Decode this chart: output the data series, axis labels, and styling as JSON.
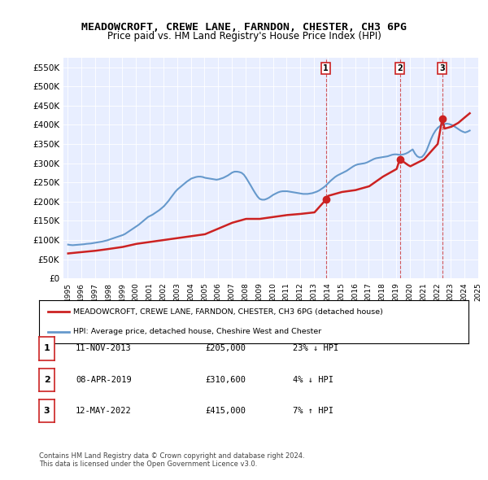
{
  "title": "MEADOWCROFT, CREWE LANE, FARNDON, CHESTER, CH3 6PG",
  "subtitle": "Price paid vs. HM Land Registry's House Price Index (HPI)",
  "background_color": "#f0f4ff",
  "plot_bg_color": "#e8eeff",
  "ylim": [
    0,
    575000
  ],
  "yticks": [
    0,
    50000,
    100000,
    150000,
    200000,
    250000,
    300000,
    350000,
    400000,
    450000,
    500000,
    550000
  ],
  "ytick_labels": [
    "£0",
    "£50K",
    "£100K",
    "£150K",
    "£200K",
    "£250K",
    "£300K",
    "£350K",
    "£400K",
    "£450K",
    "£500K",
    "£550K"
  ],
  "hpi_color": "#6699cc",
  "sale_color": "#cc2222",
  "vline_color": "#cc3333",
  "sales": [
    {
      "date": 2013.87,
      "price": 205000,
      "label": "1"
    },
    {
      "date": 2019.27,
      "price": 310600,
      "label": "2"
    },
    {
      "date": 2022.37,
      "price": 415000,
      "label": "3"
    }
  ],
  "legend_sale_label": "MEADOWCROFT, CREWE LANE, FARNDON, CHESTER, CH3 6PG (detached house)",
  "legend_hpi_label": "HPI: Average price, detached house, Cheshire West and Chester",
  "table_rows": [
    {
      "num": "1",
      "date": "11-NOV-2013",
      "price": "£205,000",
      "change": "23% ↓ HPI"
    },
    {
      "num": "2",
      "date": "08-APR-2019",
      "price": "£310,600",
      "change": "4% ↓ HPI"
    },
    {
      "num": "3",
      "date": "12-MAY-2022",
      "price": "£415,000",
      "change": "7% ↑ HPI"
    }
  ],
  "footnote": "Contains HM Land Registry data © Crown copyright and database right 2024.\nThis data is licensed under the Open Government Licence v3.0.",
  "hpi_data_x": [
    1995.04,
    1995.21,
    1995.38,
    1995.54,
    1995.71,
    1995.88,
    1996.04,
    1996.21,
    1996.38,
    1996.54,
    1996.71,
    1996.88,
    1997.04,
    1997.21,
    1997.38,
    1997.54,
    1997.71,
    1997.88,
    1998.04,
    1998.21,
    1998.38,
    1998.54,
    1998.71,
    1998.88,
    1999.04,
    1999.21,
    1999.38,
    1999.54,
    1999.71,
    1999.88,
    2000.04,
    2000.21,
    2000.38,
    2000.54,
    2000.71,
    2000.88,
    2001.04,
    2001.21,
    2001.38,
    2001.54,
    2001.71,
    2001.88,
    2002.04,
    2002.21,
    2002.38,
    2002.54,
    2002.71,
    2002.88,
    2003.04,
    2003.21,
    2003.38,
    2003.54,
    2003.71,
    2003.88,
    2004.04,
    2004.21,
    2004.38,
    2004.54,
    2004.71,
    2004.88,
    2005.04,
    2005.21,
    2005.38,
    2005.54,
    2005.71,
    2005.88,
    2006.04,
    2006.21,
    2006.38,
    2006.54,
    2006.71,
    2006.88,
    2007.04,
    2007.21,
    2007.38,
    2007.54,
    2007.71,
    2007.88,
    2008.04,
    2008.21,
    2008.38,
    2008.54,
    2008.71,
    2008.88,
    2009.04,
    2009.21,
    2009.38,
    2009.54,
    2009.71,
    2009.88,
    2010.04,
    2010.21,
    2010.38,
    2010.54,
    2010.71,
    2010.88,
    2011.04,
    2011.21,
    2011.38,
    2011.54,
    2011.71,
    2011.88,
    2012.04,
    2012.21,
    2012.38,
    2012.54,
    2012.71,
    2012.88,
    2013.04,
    2013.21,
    2013.38,
    2013.54,
    2013.71,
    2013.88,
    2014.04,
    2014.21,
    2014.38,
    2014.54,
    2014.71,
    2014.88,
    2015.04,
    2015.21,
    2015.38,
    2015.54,
    2015.71,
    2015.88,
    2016.04,
    2016.21,
    2016.38,
    2016.54,
    2016.71,
    2016.88,
    2017.04,
    2017.21,
    2017.38,
    2017.54,
    2017.71,
    2017.88,
    2018.04,
    2018.21,
    2018.38,
    2018.54,
    2018.71,
    2018.88,
    2019.04,
    2019.21,
    2019.38,
    2019.54,
    2019.71,
    2019.88,
    2020.04,
    2020.21,
    2020.38,
    2020.54,
    2020.71,
    2020.88,
    2021.04,
    2021.21,
    2021.38,
    2021.54,
    2021.71,
    2021.88,
    2022.04,
    2022.21,
    2022.38,
    2022.54,
    2022.71,
    2022.88,
    2023.04,
    2023.21,
    2023.38,
    2023.54,
    2023.71,
    2023.88,
    2024.04,
    2024.21,
    2024.38
  ],
  "hpi_data_y": [
    88000,
    87000,
    86500,
    87000,
    87500,
    88000,
    88500,
    89000,
    90000,
    90500,
    91000,
    92000,
    93000,
    94000,
    95000,
    96000,
    97500,
    99000,
    101000,
    103000,
    105000,
    107000,
    109000,
    111000,
    113000,
    116000,
    120000,
    124000,
    128000,
    132000,
    136000,
    140000,
    145000,
    150000,
    155000,
    160000,
    163000,
    166000,
    170000,
    174000,
    178000,
    183000,
    188000,
    195000,
    202000,
    210000,
    218000,
    226000,
    232000,
    237000,
    242000,
    247000,
    252000,
    256000,
    260000,
    262000,
    264000,
    265000,
    265000,
    264000,
    262000,
    261000,
    260000,
    259000,
    258000,
    257000,
    258000,
    260000,
    262000,
    265000,
    268000,
    272000,
    276000,
    278000,
    278000,
    277000,
    275000,
    270000,
    262000,
    252000,
    242000,
    232000,
    222000,
    213000,
    207000,
    205000,
    205000,
    207000,
    210000,
    214000,
    218000,
    221000,
    224000,
    226000,
    227000,
    227000,
    227000,
    226000,
    225000,
    224000,
    223000,
    222000,
    221000,
    220000,
    220000,
    220000,
    221000,
    222000,
    224000,
    226000,
    229000,
    233000,
    237000,
    242000,
    248000,
    254000,
    259000,
    264000,
    268000,
    271000,
    274000,
    277000,
    280000,
    284000,
    288000,
    292000,
    295000,
    297000,
    298000,
    299000,
    300000,
    302000,
    305000,
    308000,
    311000,
    313000,
    314000,
    315000,
    316000,
    317000,
    318000,
    320000,
    322000,
    323000,
    323000,
    322000,
    322000,
    323000,
    325000,
    328000,
    332000,
    336000,
    325000,
    318000,
    315000,
    316000,
    322000,
    332000,
    347000,
    362000,
    375000,
    385000,
    392000,
    397000,
    400000,
    402000,
    403000,
    402000,
    400000,
    397000,
    393000,
    389000,
    385000,
    382000,
    380000,
    382000,
    385000
  ],
  "sale_data_x": [
    1995.04,
    1995.88,
    1997.04,
    1997.88,
    1999.04,
    2000.04,
    2001.04,
    2002.04,
    2003.04,
    2004.04,
    2005.04,
    2006.04,
    2007.04,
    2008.04,
    2009.04,
    2010.04,
    2011.04,
    2012.04,
    2013.04,
    2013.87,
    2014.04,
    2015.04,
    2016.04,
    2017.04,
    2018.04,
    2019.04,
    2019.27,
    2019.88,
    2020.04,
    2021.04,
    2022.04,
    2022.37,
    2022.54,
    2023.04,
    2023.54,
    2024.04,
    2024.38
  ],
  "sale_data_y": [
    65000,
    68000,
    72000,
    76000,
    82000,
    90000,
    95000,
    100000,
    105000,
    110000,
    115000,
    130000,
    145000,
    155000,
    155000,
    160000,
    165000,
    168000,
    172000,
    205000,
    215000,
    225000,
    230000,
    240000,
    265000,
    285000,
    310600,
    295000,
    292000,
    310000,
    350000,
    415000,
    390000,
    395000,
    405000,
    420000,
    430000
  ]
}
